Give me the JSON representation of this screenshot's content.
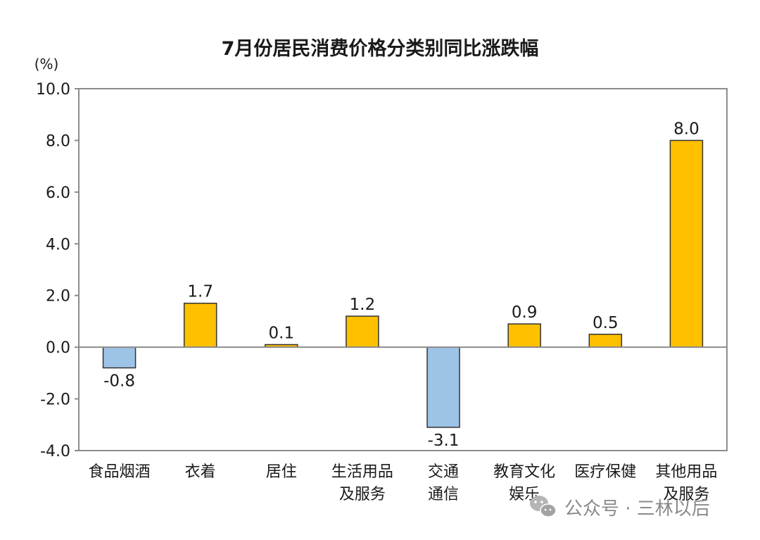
{
  "chart_data": {
    "type": "bar",
    "title": "7月份居民消费价格分类别同比涨跌幅",
    "unit_label": "(%)",
    "categories": [
      [
        "食品烟酒"
      ],
      [
        "衣着"
      ],
      [
        "居住"
      ],
      [
        "生活用品",
        "及服务"
      ],
      [
        "交通",
        "通信"
      ],
      [
        "教育文化",
        "娱乐"
      ],
      [
        "医疗保健"
      ],
      [
        "其他用品",
        "及服务"
      ]
    ],
    "values": [
      -0.8,
      1.7,
      0.1,
      1.2,
      -3.1,
      0.9,
      0.5,
      8.0
    ],
    "value_labels": [
      "-0.8",
      "1.7",
      "0.1",
      "1.2",
      "-3.1",
      "0.9",
      "0.5",
      "8.0"
    ],
    "ylim": [
      -4,
      10
    ],
    "yticks": [
      10,
      8,
      6,
      4,
      2,
      0,
      -2,
      -4
    ],
    "ytick_labels": [
      "10.0",
      "8.0",
      "6.0",
      "4.0",
      "2.0",
      "0.0",
      "-2.0",
      "-4.0"
    ],
    "grid": false,
    "legend": "none",
    "colors": {
      "positive": "#FFC000",
      "positive_stroke": "#333333",
      "negative": "#9DC3E6",
      "negative_stroke": "#333333",
      "axis": "#8c8c8c",
      "zero_line": "#8c8c8c"
    }
  },
  "watermark": {
    "icon": "wechat-icon",
    "text": "公众号 · 三林以后"
  }
}
